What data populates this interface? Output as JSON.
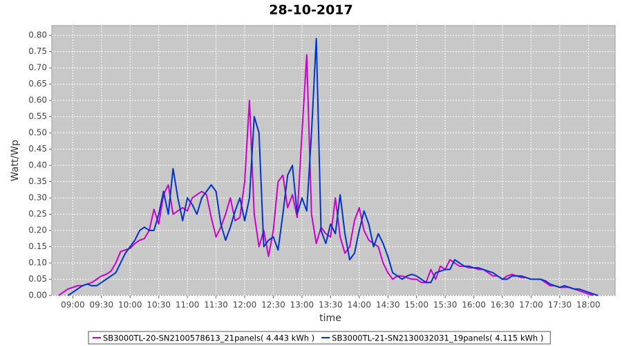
{
  "chart_data": {
    "type": "line",
    "title": "28-10-2017",
    "xlabel": "time",
    "ylabel": "Watt/Wp",
    "x": [
      "08:45",
      "08:50",
      "08:55",
      "09:00",
      "09:05",
      "09:10",
      "09:15",
      "09:20",
      "09:25",
      "09:30",
      "09:35",
      "09:40",
      "09:45",
      "09:50",
      "09:55",
      "10:00",
      "10:05",
      "10:10",
      "10:15",
      "10:20",
      "10:25",
      "10:30",
      "10:35",
      "10:40",
      "10:45",
      "10:50",
      "10:55",
      "11:00",
      "11:05",
      "11:10",
      "11:15",
      "11:20",
      "11:25",
      "11:30",
      "11:35",
      "11:40",
      "11:45",
      "11:50",
      "11:55",
      "12:00",
      "12:05",
      "12:10",
      "12:15",
      "12:20",
      "12:25",
      "12:30",
      "12:35",
      "12:40",
      "12:45",
      "12:50",
      "12:55",
      "13:00",
      "13:05",
      "13:10",
      "13:15",
      "13:20",
      "13:25",
      "13:30",
      "13:35",
      "13:40",
      "13:45",
      "13:50",
      "13:55",
      "14:00",
      "14:05",
      "14:10",
      "14:15",
      "14:20",
      "14:25",
      "14:30",
      "14:35",
      "14:40",
      "14:45",
      "14:50",
      "14:55",
      "15:00",
      "15:05",
      "15:10",
      "15:15",
      "15:20",
      "15:25",
      "15:30",
      "15:35",
      "15:40",
      "15:45",
      "15:50",
      "15:55",
      "16:00",
      "16:05",
      "16:10",
      "16:15",
      "16:20",
      "16:25",
      "16:30",
      "16:35",
      "16:40",
      "16:45",
      "16:50",
      "16:55",
      "17:00",
      "17:05",
      "17:10",
      "17:15",
      "17:20",
      "17:25",
      "17:30",
      "17:35",
      "17:40",
      "17:45",
      "17:50",
      "17:55",
      "18:00",
      "18:05",
      "18:10",
      "18:15"
    ],
    "series": [
      {
        "name": "SB3000TL-20-SN2100578613_21panels( 4.443 kWh )",
        "color": "#cc00cc",
        "values": [
          0,
          0.01,
          0.02,
          0.025,
          0.03,
          0.03,
          0.035,
          0.04,
          0.05,
          0.06,
          0.065,
          0.075,
          0.1,
          0.135,
          0.14,
          0.145,
          0.16,
          0.17,
          0.175,
          0.2,
          0.265,
          0.22,
          0.31,
          0.34,
          0.25,
          0.26,
          0.27,
          0.26,
          0.3,
          0.31,
          0.32,
          0.31,
          0.24,
          0.18,
          0.21,
          0.25,
          0.3,
          0.23,
          0.24,
          0.35,
          0.6,
          0.25,
          0.15,
          0.2,
          0.12,
          0.2,
          0.35,
          0.37,
          0.27,
          0.31,
          0.24,
          0.5,
          0.74,
          0.25,
          0.16,
          0.21,
          0.19,
          0.18,
          0.3,
          0.18,
          0.13,
          0.15,
          0.23,
          0.27,
          0.2,
          0.17,
          0.16,
          0.15,
          0.1,
          0.07,
          0.05,
          0.06,
          0.06,
          0.055,
          0.05,
          0.05,
          0.04,
          0.04,
          0.08,
          0.05,
          0.09,
          0.08,
          0.11,
          0.1,
          0.09,
          0.09,
          0.085,
          0.085,
          0.08,
          0.08,
          0.07,
          0.06,
          0.06,
          0.05,
          0.06,
          0.065,
          0.06,
          0.055,
          0.055,
          0.05,
          0.05,
          0.05,
          0.04,
          0.03,
          0.03,
          0.025,
          0.025,
          0.025,
          0.02,
          0.015,
          0.01,
          0.005,
          0,
          null,
          null
        ]
      },
      {
        "name": "SB3000TL-21-SN2130032031_19panels( 4.115 kWh )",
        "color": "#0033cc",
        "values": [
          null,
          null,
          0,
          0.01,
          0.02,
          0.03,
          0.035,
          0.03,
          0.03,
          0.04,
          0.05,
          0.06,
          0.07,
          0.1,
          0.13,
          0.15,
          0.17,
          0.2,
          0.21,
          0.2,
          0.2,
          0.25,
          0.32,
          0.25,
          0.39,
          0.3,
          0.23,
          0.3,
          0.28,
          0.25,
          0.3,
          0.32,
          0.34,
          0.32,
          0.22,
          0.17,
          0.21,
          0.26,
          0.3,
          0.23,
          0.3,
          0.55,
          0.5,
          0.15,
          0.17,
          0.18,
          0.14,
          0.25,
          0.37,
          0.4,
          0.25,
          0.3,
          0.26,
          0.5,
          0.79,
          0.2,
          0.16,
          0.22,
          0.19,
          0.31,
          0.19,
          0.11,
          0.13,
          0.2,
          0.26,
          0.22,
          0.15,
          0.19,
          0.16,
          0.12,
          0.07,
          0.06,
          0.05,
          0.06,
          0.065,
          0.06,
          0.05,
          0.04,
          0.04,
          0.07,
          0.075,
          0.08,
          0.08,
          0.11,
          0.1,
          0.09,
          0.09,
          0.085,
          0.085,
          0.08,
          0.075,
          0.07,
          0.06,
          0.05,
          0.05,
          0.06,
          0.06,
          0.06,
          0.055,
          0.05,
          0.05,
          0.05,
          0.045,
          0.035,
          0.03,
          0.025,
          0.03,
          0.025,
          0.02,
          0.02,
          0.015,
          0.01,
          0.005,
          0,
          null
        ]
      }
    ],
    "xlim": [
      "08:38",
      "18:28"
    ],
    "xticks": [
      "09:00",
      "09:30",
      "10:00",
      "10:30",
      "11:00",
      "11:30",
      "12:00",
      "12:30",
      "13:00",
      "13:30",
      "14:00",
      "14:30",
      "15:00",
      "15:30",
      "16:00",
      "16:30",
      "17:00",
      "17:30",
      "18:00"
    ],
    "ylim": [
      0,
      0.83
    ],
    "yticks": [
      {
        "value": 0,
        "label": "0.00"
      },
      0.05,
      {
        "value": 0.1,
        "label": "0.10"
      },
      0.15,
      {
        "value": 0.2,
        "label": "0.20"
      },
      0.25,
      {
        "value": 0.3,
        "label": "0.30"
      },
      0.35,
      {
        "value": 0.4,
        "label": "0.40"
      },
      0.45,
      {
        "value": 0.5,
        "label": "0.50"
      },
      0.55,
      {
        "value": 0.6,
        "label": "0.60"
      },
      0.65,
      {
        "value": 0.7,
        "label": "0.70"
      },
      0.75,
      {
        "value": 0.8,
        "label": "0.80"
      }
    ],
    "grid": true,
    "legend": "bottom"
  }
}
